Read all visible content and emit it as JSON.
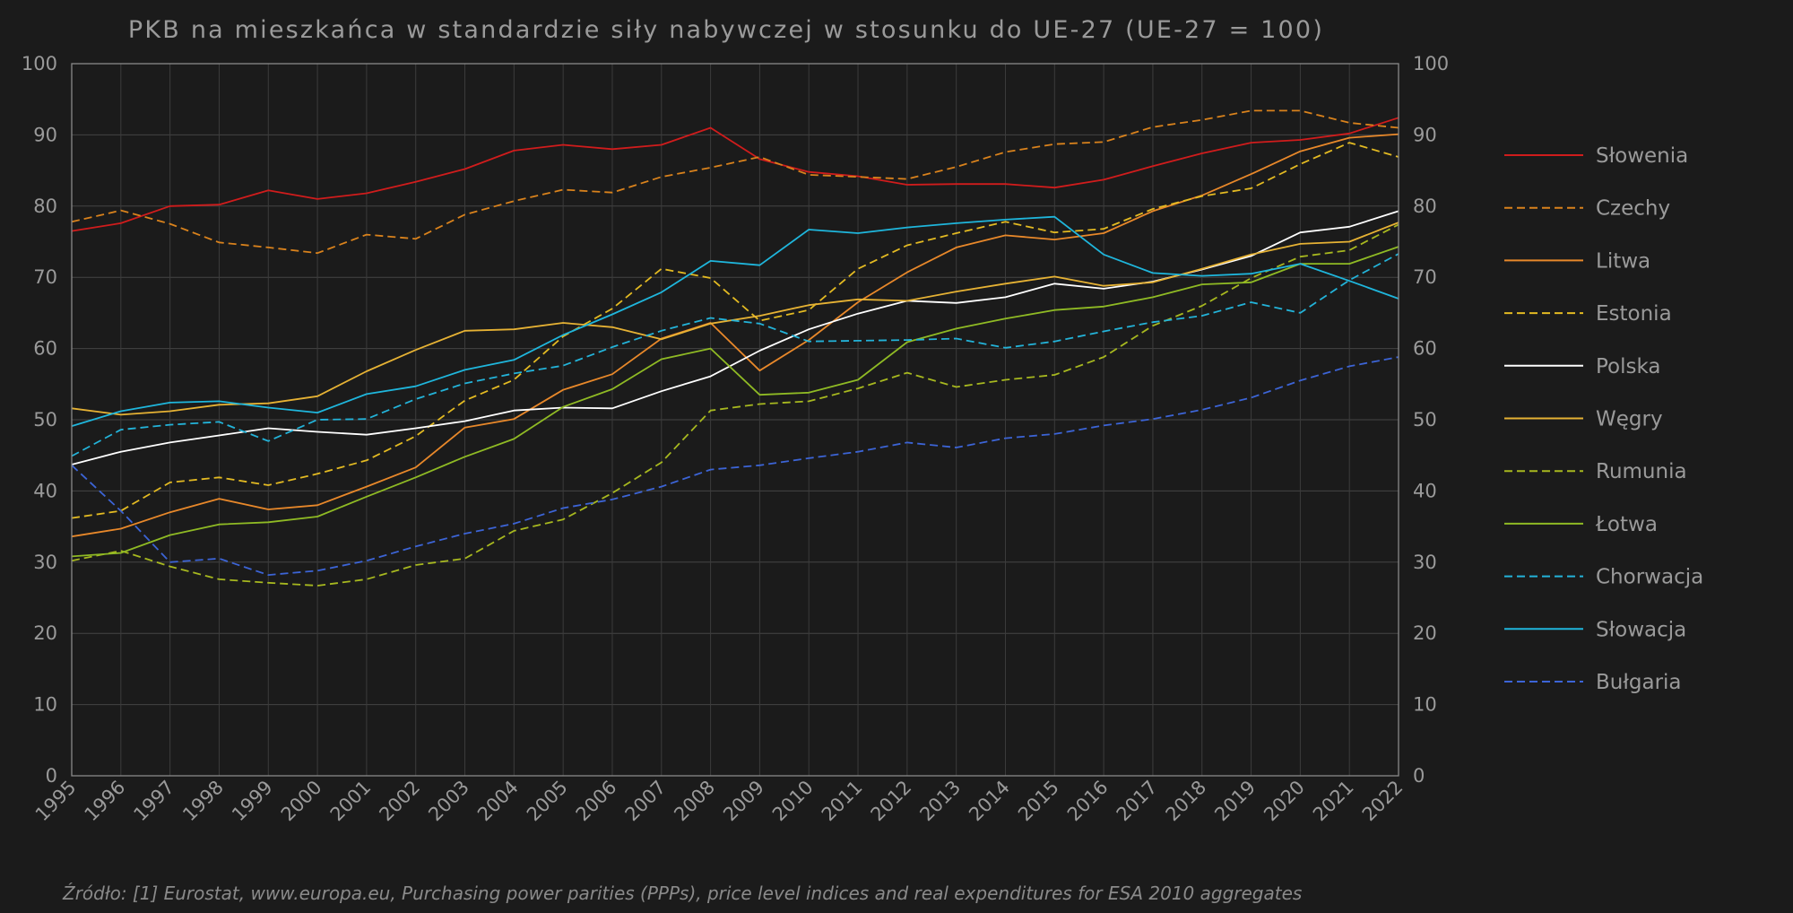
{
  "chart_data": {
    "type": "line",
    "title": "PKB na mieszkańca w standardzie siły nabywczej w stosunku do UE-27 (UE-27 = 100)",
    "source": "Źródło: [1] Eurostat, www.europa.eu,  Purchasing power parities (PPPs), price level indices and real expenditures for ESA 2010 aggregates",
    "xlabel": "",
    "ylabel": "",
    "ylim": [
      0,
      100
    ],
    "y_ticks": [
      0,
      10,
      20,
      30,
      40,
      50,
      60,
      70,
      80,
      90,
      100
    ],
    "grid": true,
    "legend_position": "right",
    "x": [
      "1995",
      "1996",
      "1997",
      "1998",
      "1999",
      "2000",
      "2001",
      "2002",
      "2003",
      "2004",
      "2005",
      "2006",
      "2007",
      "2008",
      "2009",
      "2010",
      "2011",
      "2012",
      "2013",
      "2014",
      "2015",
      "2016",
      "2017",
      "2018",
      "2019",
      "2020",
      "2021",
      "2022"
    ],
    "series": [
      {
        "name": "Słowenia",
        "color": "#d01c1c",
        "dashed": false,
        "values": [
          76.5,
          77.6,
          80.0,
          80.2,
          82.2,
          81.0,
          81.8,
          83.4,
          85.2,
          87.8,
          88.6,
          88.0,
          88.6,
          91.0,
          86.6,
          84.8,
          84.2,
          83.0,
          83.1,
          83.1,
          82.6,
          83.7,
          85.6,
          87.4,
          88.9,
          89.3,
          90.2,
          92.4
        ]
      },
      {
        "name": "Czechy",
        "color": "#d9821c",
        "dashed": true,
        "values": [
          77.8,
          79.4,
          77.5,
          74.9,
          74.2,
          73.4,
          76.0,
          75.4,
          78.8,
          80.7,
          82.3,
          81.9,
          84.1,
          85.4,
          86.9,
          84.4,
          84.1,
          83.8,
          85.5,
          87.6,
          88.7,
          89.0,
          91.1,
          92.1,
          93.4,
          93.4,
          91.7,
          91.0
        ]
      },
      {
        "name": "Litwa",
        "color": "#e8882a",
        "dashed": false,
        "values": [
          33.6,
          34.7,
          37.0,
          38.9,
          37.4,
          38.0,
          40.6,
          43.3,
          48.9,
          50.1,
          54.2,
          56.4,
          61.4,
          63.6,
          56.9,
          61.2,
          66.5,
          70.7,
          74.2,
          75.9,
          75.3,
          76.2,
          79.3,
          81.5,
          84.5,
          87.7,
          89.6,
          90.1
        ]
      },
      {
        "name": "Estonia",
        "color": "#e3ba22",
        "dashed": true,
        "values": [
          36.2,
          37.2,
          41.2,
          41.9,
          40.8,
          42.4,
          44.3,
          47.7,
          52.7,
          55.6,
          61.7,
          65.6,
          71.2,
          69.9,
          63.9,
          65.4,
          71.2,
          74.5,
          76.2,
          77.8,
          76.3,
          76.8,
          79.6,
          81.4,
          82.5,
          85.9,
          88.9,
          86.9
        ]
      },
      {
        "name": "Polska",
        "color": "#ffffff",
        "dashed": false,
        "values": [
          43.7,
          45.5,
          46.8,
          47.8,
          48.8,
          48.3,
          47.9,
          48.8,
          49.8,
          51.3,
          51.7,
          51.6,
          54.0,
          56.1,
          59.7,
          62.7,
          64.9,
          66.7,
          66.4,
          67.2,
          69.1,
          68.4,
          69.4,
          71.1,
          73.0,
          76.3,
          77.1,
          79.3
        ]
      },
      {
        "name": "Węgry",
        "color": "#e6b234",
        "dashed": false,
        "values": [
          51.6,
          50.7,
          51.2,
          52.1,
          52.3,
          53.3,
          56.8,
          59.8,
          62.5,
          62.7,
          63.6,
          63.0,
          61.3,
          63.5,
          64.6,
          66.1,
          66.9,
          66.7,
          68.0,
          69.1,
          70.1,
          68.8,
          69.3,
          71.2,
          73.2,
          74.7,
          75.0,
          77.7
        ]
      },
      {
        "name": "Rumunia",
        "color": "#a7b81f",
        "dashed": true,
        "values": [
          30.2,
          31.6,
          29.4,
          27.6,
          27.1,
          26.7,
          27.6,
          29.6,
          30.5,
          34.4,
          36.0,
          39.7,
          44.0,
          51.3,
          52.2,
          52.6,
          54.4,
          56.6,
          54.6,
          55.6,
          56.3,
          58.8,
          63.2,
          66.0,
          69.9,
          72.9,
          73.8,
          77.4
        ]
      },
      {
        "name": "Łotwa",
        "color": "#8fba24",
        "dashed": false,
        "values": [
          30.8,
          31.3,
          33.8,
          35.3,
          35.6,
          36.4,
          39.2,
          41.9,
          44.8,
          47.3,
          51.8,
          54.3,
          58.5,
          60.0,
          53.5,
          53.8,
          55.6,
          60.9,
          62.8,
          64.2,
          65.4,
          65.9,
          67.2,
          69.0,
          69.3,
          71.9,
          71.9,
          74.3
        ]
      },
      {
        "name": "Chorwacja",
        "color": "#23b3d9",
        "dashed": true,
        "values": [
          44.9,
          48.6,
          49.3,
          49.7,
          47.0,
          50.0,
          50.1,
          52.9,
          55.1,
          56.5,
          57.6,
          60.2,
          62.5,
          64.3,
          63.5,
          61.0,
          61.1,
          61.2,
          61.4,
          60.1,
          61.0,
          62.4,
          63.7,
          64.6,
          66.5,
          65.0,
          69.6,
          73.3
        ]
      },
      {
        "name": "Słowacja",
        "color": "#1fb6dc",
        "dashed": false,
        "values": [
          49.1,
          51.2,
          52.4,
          52.6,
          51.7,
          51.0,
          53.6,
          54.7,
          57.0,
          58.4,
          61.9,
          64.8,
          67.9,
          72.3,
          71.7,
          76.7,
          76.2,
          77.0,
          77.6,
          78.1,
          78.5,
          73.2,
          70.6,
          70.2,
          70.5,
          71.9,
          69.5,
          67.0
        ]
      },
      {
        "name": "Bułgaria",
        "color": "#3c64d6",
        "dashed": true,
        "values": [
          43.6,
          37.2,
          30.0,
          30.5,
          28.2,
          28.8,
          30.2,
          32.2,
          34.0,
          35.4,
          37.6,
          38.8,
          40.6,
          43.0,
          43.6,
          44.6,
          45.5,
          46.8,
          46.1,
          47.4,
          48.0,
          49.2,
          50.1,
          51.4,
          53.1,
          55.5,
          57.5,
          58.8
        ]
      }
    ]
  }
}
